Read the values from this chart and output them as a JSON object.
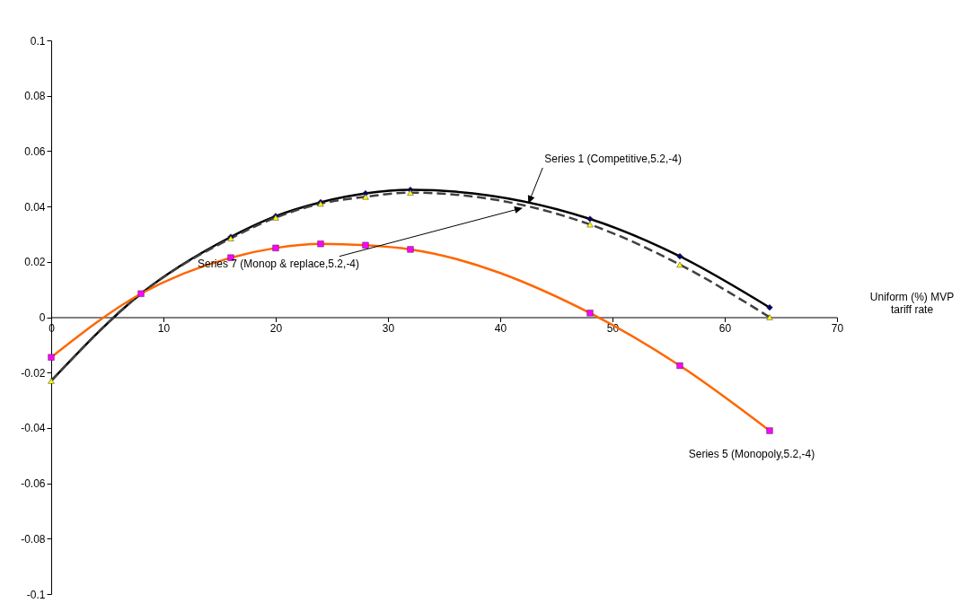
{
  "chart_data": {
    "type": "line",
    "xlabel": "Uniform (%)  MVP tariff rate",
    "x": [
      0,
      8,
      16,
      20,
      24,
      28,
      32,
      48,
      56,
      64
    ],
    "xlim": [
      0,
      70
    ],
    "xticks": [
      0,
      10,
      20,
      30,
      40,
      50,
      60,
      70
    ],
    "ylim": [
      -0.1,
      0.1
    ],
    "yticks": [
      -0.1,
      -0.08,
      -0.06,
      -0.04,
      -0.02,
      0,
      0.02,
      0.04,
      0.06,
      0.08,
      0.1
    ],
    "grid": false,
    "series": [
      {
        "type": "line",
        "color": "#000000",
        "marker": "none",
        "line_style": "solid",
        "values": [
          -0.023,
          0.0085,
          0.029,
          0.0365,
          0.0415,
          0.0447,
          0.046,
          0.0355,
          0.022,
          0.0035
        ]
      },
      {
        "type": "line",
        "color": "#404040",
        "marker": "none",
        "line_style": "dashed",
        "values": [
          -0.023,
          0.0085,
          0.0285,
          0.036,
          0.041,
          0.0435,
          0.045,
          0.0335,
          0.019,
          0
        ]
      },
      {
        "type": "line",
        "color": "#ff6600",
        "marker": "none",
        "line_style": "solid",
        "values": [
          -0.0145,
          0.0085,
          0.0215,
          0.025,
          0.0265,
          0.026,
          0.0245,
          0.0015,
          -0.0175,
          -0.041
        ]
      },
      {
        "type": "scatter",
        "color": "#000066",
        "marker": "diamond",
        "values": [
          null,
          null,
          0.029,
          0.0365,
          0.0415,
          0.0447,
          0.046,
          0.0355,
          0.022,
          0.0035
        ]
      },
      {
        "type": "scatter",
        "color": "#ffff00",
        "marker": "triangle",
        "values": [
          -0.023,
          null,
          0.0285,
          0.036,
          0.041,
          0.0435,
          0.045,
          0.0335,
          0.019,
          0
        ]
      },
      {
        "type": "scatter",
        "color": "#ff00ff",
        "marker": "square",
        "values": [
          -0.0145,
          0.0085,
          0.0215,
          0.025,
          0.0265,
          0.026,
          0.0245,
          0.0015,
          -0.0175,
          -0.041
        ]
      }
    ],
    "annotations": [
      {
        "text": "Series 1 (Competitive,5.2,-4)",
        "x": 42.5,
        "y": 0.041
      },
      {
        "text": "Series 7 (Monop & replace,5.2,-4)",
        "x": 42,
        "y": 0.0395
      },
      {
        "text": "Series 5 (Monopoly,5.2,-4)",
        "x": 64,
        "y": -0.041
      }
    ]
  }
}
